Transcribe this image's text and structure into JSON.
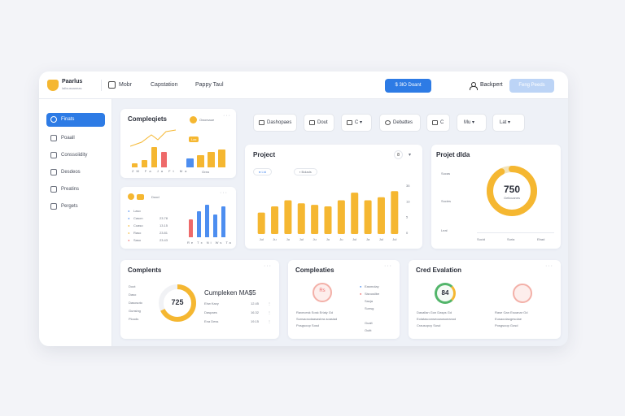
{
  "topbar": {
    "brand": "Paarlus",
    "brand_sub": "Ialloussaneas",
    "nav_item1": "Mobr",
    "nav_item2": "Capstation",
    "nav_item3": "Pappy Taul",
    "primary_button": "$ 3lO Doant",
    "user_label": "Backpert",
    "light_button": "Feng Peeds"
  },
  "sidebar": {
    "items": [
      "Finats",
      "Poaall",
      "Conssoiidity",
      "Desdeos",
      "Preatins",
      "Pergets"
    ]
  },
  "filters": [
    "Dashopaes",
    "Dout",
    "C",
    "Debattes",
    "C",
    "Mu",
    "Lat"
  ],
  "card1": {
    "title": "Compleqiets",
    "toggle_label": "Oworsaue",
    "badge": "Lax",
    "axis": [
      "ZM",
      "Fa",
      "Ja",
      "Ft",
      "Ma"
    ],
    "footer": "Grea"
  },
  "card2": {
    "badge": "Dood",
    "rows": [
      {
        "label": "Laso",
        "value": ""
      },
      {
        "label": "Cason",
        "value": "23.78"
      },
      {
        "label": "Coaso",
        "value": "13.15"
      },
      {
        "label": "Raso",
        "value": "23.81"
      },
      {
        "label": "Saso",
        "value": "23.43"
      },
      {
        "label": "Cooles",
        "value": "29.35"
      }
    ],
    "axis": [
      "Re",
      "Tx",
      "Ni",
      "Ws",
      "Ta"
    ]
  },
  "project": {
    "title": "Project",
    "count": "8",
    "tabs": [
      "Ltd",
      "Bolads"
    ],
    "y_ticks": [
      "35",
      "13",
      "5",
      "0"
    ],
    "x_labels": [
      "Jul",
      "Ju",
      "Ju",
      "Jul",
      "Ju",
      "Ju",
      "Ju",
      "Jul",
      "Ja",
      "Jul",
      "Jul"
    ]
  },
  "chart_data": {
    "type": "bar",
    "categories": [
      "Jul",
      "Ju",
      "Ju",
      "Jul",
      "Ju",
      "Ju",
      "Ju",
      "Jul",
      "Ja",
      "Jul",
      "Jul"
    ],
    "values": [
      14,
      18,
      22,
      20,
      19,
      18,
      22,
      27,
      22,
      24,
      28
    ],
    "ylim": [
      0,
      35
    ]
  },
  "project_data": {
    "title": "Projet dlda",
    "value": "750",
    "sub": "Gelicuanes",
    "labels": [
      "Sucas",
      "Sucies",
      "Leal"
    ],
    "footer": [
      "Sucid",
      "Suria",
      "Ebad"
    ],
    "progress": 0.92,
    "accent": "#f5b731"
  },
  "completions": {
    "title": "Complents",
    "ring_value": "725",
    "ring_progress": 0.68,
    "list": [
      "Doot",
      "Daso",
      "Dasosoto",
      "Gunsing",
      "Plouds"
    ],
    "heading": "Cumpleken MA$5",
    "rows": [
      {
        "label": "Ehw Kavy",
        "value": "12.45"
      },
      {
        "label": "Daspaes",
        "value": "16.32"
      },
      {
        "label": "Ena Dess",
        "value": "19.15"
      }
    ]
  },
  "completes": {
    "title": "Compleaties",
    "icon_text": "Rs",
    "legend": [
      "Easmolay",
      "Sisnosilbe",
      "Sacja",
      "Sunsg",
      "Gualt",
      "Ouitt"
    ],
    "desc": [
      "Ravecesk Sosk Erlaly Gd",
      "Sunsaosolaasasbra aoasiad",
      "Posgsoop Sosd"
    ]
  },
  "evaluation": {
    "title": "Cred Evalation",
    "score": "84",
    "desc_left": [
      "Dasallan Gon Dasps Gd",
      "Eolatasoonsecaaosoeanod",
      "Crausopcy Sosd"
    ],
    "desc_right": [
      "Rase Gan Esoanar Gd",
      "Eusaoolaogesolae",
      "Posgsoop Gosd"
    ]
  },
  "colors": {
    "accent_blue": "#2d7be5",
    "accent_yellow": "#f5b731",
    "accent_red": "#ee6a6a",
    "accent_green": "#52b56a"
  }
}
